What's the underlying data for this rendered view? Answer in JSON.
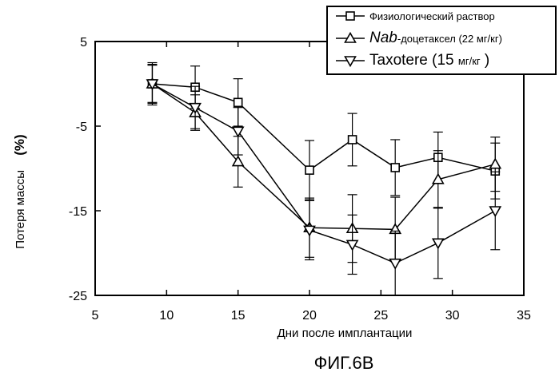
{
  "chart_data": {
    "type": "line",
    "title": "",
    "figure_label": "ФИГ.6B",
    "xlabel": "Дни после имплантации",
    "ylabel": "Потеря массы",
    "ylabel_unit": "(%)",
    "xlim": [
      5,
      35
    ],
    "ylim": [
      -25,
      5
    ],
    "x_ticks": [
      5,
      10,
      15,
      20,
      25,
      30,
      35
    ],
    "y_ticks": [
      5,
      -5,
      -15,
      -25
    ],
    "grid": false,
    "legend_position": "top-right",
    "series": [
      {
        "name": "Физиологический раствор",
        "name_parts": [
          "",
          "Физиологический раствор"
        ],
        "marker": "square",
        "x": [
          9,
          12,
          15,
          20,
          23,
          26,
          29,
          33
        ],
        "y": [
          0.0,
          -0.4,
          -2.2,
          -10.2,
          -6.6,
          -9.9,
          -8.7,
          -10.3
        ],
        "err": [
          2.3,
          2.5,
          2.8,
          3.5,
          3.1,
          3.3,
          3.0,
          3.3
        ]
      },
      {
        "name": "Nab-доцетаксел (22 мг/кг)",
        "name_parts": [
          "Nab",
          "-доцетаксел (22 мг/кг)"
        ],
        "marker": "triangle-up",
        "x": [
          9,
          12,
          15,
          20,
          23,
          26,
          29,
          33
        ],
        "y": [
          0.0,
          -3.4,
          -9.2,
          -17.0,
          -17.1,
          -17.2,
          -11.3,
          -9.5
        ],
        "err": [
          2.2,
          2.1,
          3.0,
          3.5,
          4.0,
          3.8,
          3.4,
          3.2
        ]
      },
      {
        "name": "Taxotere (15 мг/кг )",
        "name_parts": [
          "Taxotere (15 ",
          "мг/кг",
          " )"
        ],
        "marker": "triangle-down",
        "x": [
          9,
          12,
          15,
          20,
          23,
          26,
          29,
          33
        ],
        "y": [
          0.0,
          -2.8,
          -5.6,
          -17.3,
          -19.0,
          -21.2,
          -18.8,
          -15.0
        ],
        "err": [
          2.5,
          2.5,
          2.8,
          3.5,
          3.5,
          3.8,
          4.2,
          4.6
        ]
      }
    ]
  }
}
